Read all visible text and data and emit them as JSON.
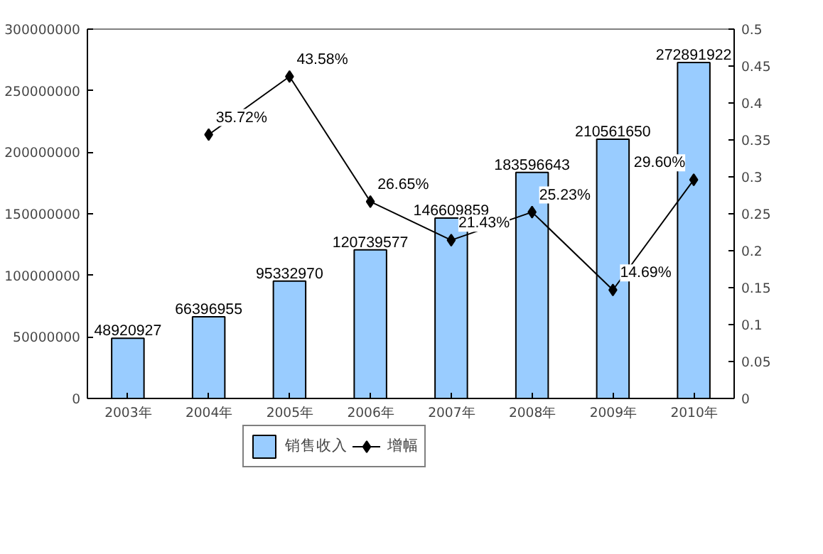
{
  "chart_data": {
    "type": "bar",
    "categories": [
      "2003年",
      "2004年",
      "2005年",
      "2006年",
      "2007年",
      "2008年",
      "2009年",
      "2010年"
    ],
    "series": [
      {
        "name": "销售收入",
        "color": "#99ccff",
        "values": [
          48920927,
          66396955,
          95332970,
          120739577,
          146609859,
          183596643,
          210561650,
          272891922
        ],
        "value_labels": [
          "48920927",
          "66396955",
          "95332970",
          "120739577",
          "146609859",
          "183596643",
          "210561650",
          "272891922"
        ]
      },
      {
        "name": "增幅",
        "type": "line",
        "axis": "y2",
        "color": "#000000",
        "marker": "diamond",
        "values": [
          null,
          0.3572,
          0.4358,
          0.2665,
          0.2143,
          0.2523,
          0.1469,
          0.296
        ],
        "value_labels": [
          null,
          "35.72%",
          "43.58%",
          "26.65%",
          "21.43%",
          "25.23%",
          "14.69%",
          "29.60%"
        ]
      }
    ],
    "ylim": [
      0,
      300000000
    ],
    "yticks": [
      0,
      50000000,
      100000000,
      150000000,
      200000000,
      250000000,
      300000000
    ],
    "y2lim": [
      0,
      0.5
    ],
    "y2ticks": [
      0,
      0.05,
      0.1,
      0.15,
      0.2,
      0.25,
      0.3,
      0.35,
      0.4,
      0.45,
      0.5
    ],
    "grid": false,
    "legend": "bottom"
  }
}
